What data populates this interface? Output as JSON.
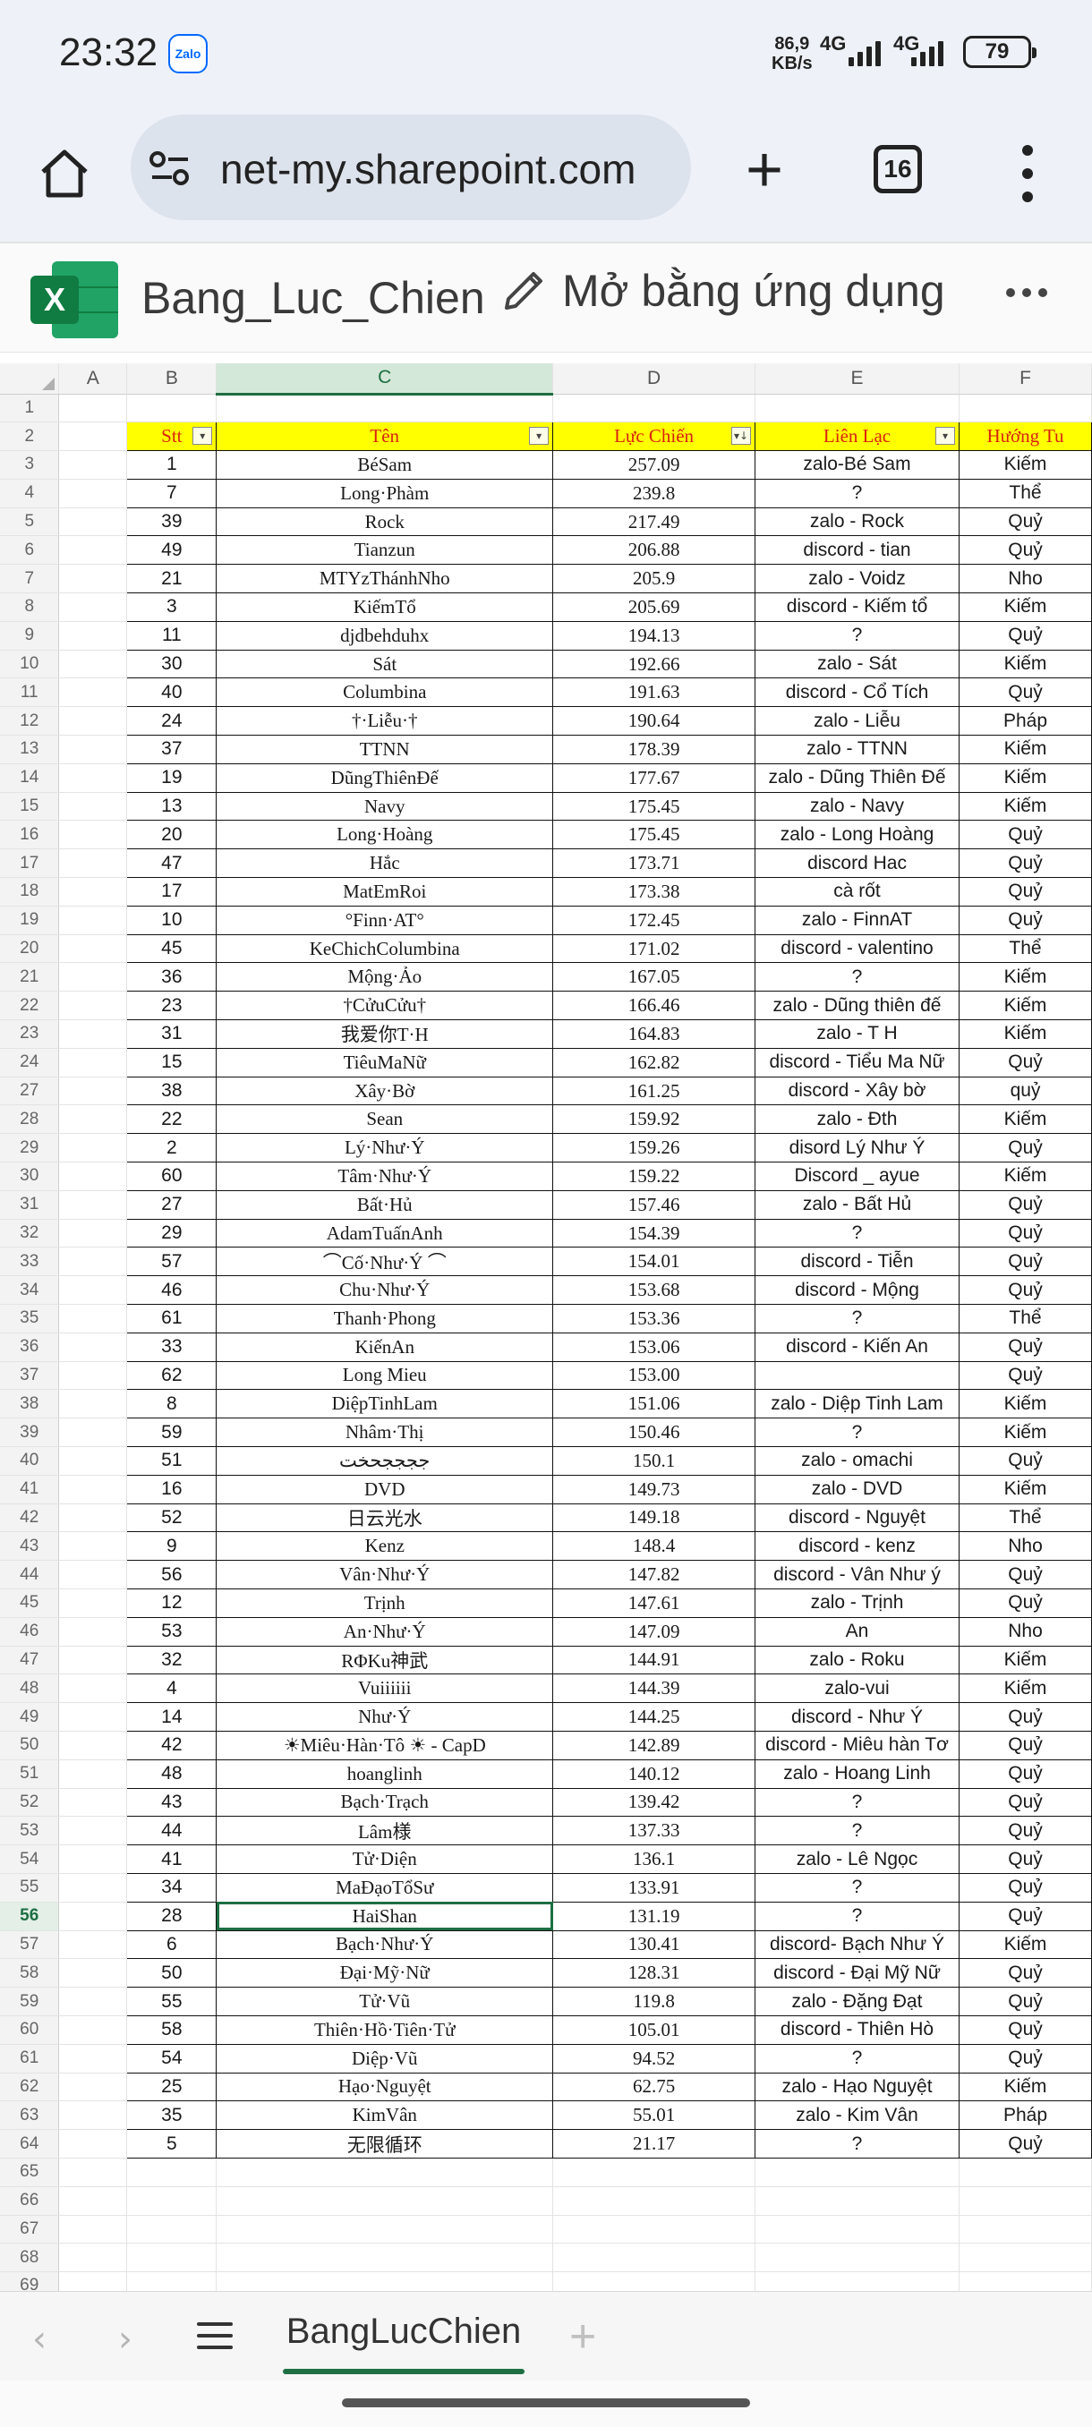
{
  "status_bar": {
    "time": "23:32",
    "app_badge": "Zalo",
    "net_speed": "86,9",
    "net_unit": "KB/s",
    "net_type_1": "4G",
    "net_type_2": "4G",
    "battery": "79"
  },
  "browser": {
    "url": "net-my.sharepoint.com",
    "tab_count": "16"
  },
  "excel": {
    "logo_letter": "X",
    "file_title": "Bang_Luc_Chien",
    "open_in_app": "Mở bằng ứng dụng"
  },
  "grid": {
    "column_letters": [
      "A",
      "B",
      "C",
      "D",
      "E",
      "F"
    ],
    "selected_column": "C",
    "selected_row": "56",
    "header_row": {
      "number": "2",
      "cells": [
        "Stt",
        "Tên",
        "Lực Chiến",
        "Liên Lạc",
        "Hướng Tu"
      ]
    },
    "data_rows": [
      {
        "row": "3",
        "stt": "1",
        "ten": "BéSam",
        "luc_chien": "257.09",
        "lien_lac": "zalo-Bé Sam",
        "huong_tu": "Kiếm"
      },
      {
        "row": "4",
        "stt": "7",
        "ten": "Long·Phàm",
        "luc_chien": "239.8",
        "lien_lac": "?",
        "huong_tu": "Thể"
      },
      {
        "row": "5",
        "stt": "39",
        "ten": "Rock",
        "luc_chien": "217.49",
        "lien_lac": "zalo - Rock",
        "huong_tu": "Quỷ"
      },
      {
        "row": "6",
        "stt": "49",
        "ten": "Tianzun",
        "luc_chien": "206.88",
        "lien_lac": "discord - tian",
        "huong_tu": "Quỷ"
      },
      {
        "row": "7",
        "stt": "21",
        "ten": "MTYzThánhNho",
        "luc_chien": "205.9",
        "lien_lac": "zalo - Voidz",
        "huong_tu": "Nho"
      },
      {
        "row": "8",
        "stt": "3",
        "ten": "KiếmTổ",
        "luc_chien": "205.69",
        "lien_lac": "discord - Kiếm tổ",
        "huong_tu": "Kiếm"
      },
      {
        "row": "9",
        "stt": "11",
        "ten": "djdbehduhx",
        "luc_chien": "194.13",
        "lien_lac": "?",
        "huong_tu": "Quỷ"
      },
      {
        "row": "10",
        "stt": "30",
        "ten": "Sát",
        "luc_chien": "192.66",
        "lien_lac": "zalo - Sát",
        "huong_tu": "Kiếm"
      },
      {
        "row": "11",
        "stt": "40",
        "ten": "Columbina",
        "luc_chien": "191.63",
        "lien_lac": "discord - Cổ Tích",
        "huong_tu": "Quỷ"
      },
      {
        "row": "12",
        "stt": "24",
        "ten": "†·Liễu·†",
        "luc_chien": "190.64",
        "lien_lac": "zalo - Liễu",
        "huong_tu": "Pháp"
      },
      {
        "row": "13",
        "stt": "37",
        "ten": "TTNN",
        "luc_chien": "178.39",
        "lien_lac": "zalo - TTNN",
        "huong_tu": "Kiếm"
      },
      {
        "row": "14",
        "stt": "19",
        "ten": "DũngThiênĐế",
        "luc_chien": "177.67",
        "lien_lac": "zalo - Dũng Thiên Đế",
        "huong_tu": "Kiếm"
      },
      {
        "row": "15",
        "stt": "13",
        "ten": "Navy",
        "luc_chien": "175.45",
        "lien_lac": "zalo - Navy",
        "huong_tu": "Kiếm"
      },
      {
        "row": "16",
        "stt": "20",
        "ten": "Long·Hoàng",
        "luc_chien": "175.45",
        "lien_lac": "zalo - Long Hoàng",
        "huong_tu": "Quỷ"
      },
      {
        "row": "17",
        "stt": "47",
        "ten": "Hắc",
        "luc_chien": "173.71",
        "lien_lac": "discord Hac",
        "huong_tu": "Quỷ"
      },
      {
        "row": "18",
        "stt": "17",
        "ten": "MatEmRoi",
        "luc_chien": "173.38",
        "lien_lac": "cà rốt",
        "huong_tu": "Quỷ"
      },
      {
        "row": "19",
        "stt": "10",
        "ten": "°Finn·AT°",
        "luc_chien": "172.45",
        "lien_lac": "zalo - FinnAT",
        "huong_tu": "Quỷ"
      },
      {
        "row": "20",
        "stt": "45",
        "ten": "KeChichColumbina",
        "luc_chien": "171.02",
        "lien_lac": "discord - valentino",
        "huong_tu": "Thể"
      },
      {
        "row": "21",
        "stt": "36",
        "ten": "Mộng·Ảo",
        "luc_chien": "167.05",
        "lien_lac": "?",
        "huong_tu": "Kiếm"
      },
      {
        "row": "22",
        "stt": "23",
        "ten": "†CửuCửu†",
        "luc_chien": "166.46",
        "lien_lac": "zalo - Dũng thiên đế",
        "huong_tu": "Kiếm"
      },
      {
        "row": "23",
        "stt": "31",
        "ten": "我爱你T·H",
        "luc_chien": "164.83",
        "lien_lac": "zalo - T H",
        "huong_tu": "Kiếm"
      },
      {
        "row": "24",
        "stt": "15",
        "ten": "TiêuMaNữ",
        "luc_chien": "162.82",
        "lien_lac": "discord  - Tiểu Ma Nữ",
        "huong_tu": "Quỷ"
      },
      {
        "row": "27",
        "stt": "38",
        "ten": "Xây·Bờ",
        "luc_chien": "161.25",
        "lien_lac": "discord - Xây bờ",
        "huong_tu": "quỷ"
      },
      {
        "row": "28",
        "stt": "22",
        "ten": "Sean",
        "luc_chien": "159.92",
        "lien_lac": "zalo - Đth",
        "huong_tu": "Kiếm"
      },
      {
        "row": "29",
        "stt": "2",
        "ten": "Lý·Như·Ý",
        "luc_chien": "159.26",
        "lien_lac": "disord  Lý Như Ý",
        "huong_tu": "Quỷ"
      },
      {
        "row": "30",
        "stt": "60",
        "ten": "Tâm·Như·Ý",
        "luc_chien": "159.22",
        "lien_lac": "Discord _ ayue",
        "huong_tu": "Kiếm"
      },
      {
        "row": "31",
        "stt": "27",
        "ten": "Bất·Hủ",
        "luc_chien": "157.46",
        "lien_lac": "zalo - Bất Hủ",
        "huong_tu": "Quỷ"
      },
      {
        "row": "32",
        "stt": "29",
        "ten": "AdamTuấnAnh",
        "luc_chien": "154.39",
        "lien_lac": "?",
        "huong_tu": "Quỷ"
      },
      {
        "row": "33",
        "stt": "57",
        "ten": "⌒Cố·Như·Ý ⌒",
        "luc_chien": "154.01",
        "lien_lac": "discord - Tiễn",
        "huong_tu": "Quỷ"
      },
      {
        "row": "34",
        "stt": "46",
        "ten": "Chu·Như·Ý",
        "luc_chien": "153.68",
        "lien_lac": "discord - Mộng",
        "huong_tu": "Quỷ"
      },
      {
        "row": "35",
        "stt": "61",
        "ten": "Thanh·Phong",
        "luc_chien": "153.36",
        "lien_lac": "?",
        "huong_tu": "Thể"
      },
      {
        "row": "36",
        "stt": "33",
        "ten": "KiếnAn",
        "luc_chien": "153.06",
        "lien_lac": "discord - Kiến An",
        "huong_tu": "Quỷ"
      },
      {
        "row": "37",
        "stt": "62",
        "ten": "Long Mieu",
        "luc_chien": "153.00",
        "lien_lac": "",
        "huong_tu": "Quỷ"
      },
      {
        "row": "38",
        "stt": "8",
        "ten": "DiệpTinhLam",
        "luc_chien": "151.06",
        "lien_lac": "zalo - Diệp Tinh Lam",
        "huong_tu": "Kiếm"
      },
      {
        "row": "39",
        "stt": "59",
        "ten": "Nhâm·Thị",
        "luc_chien": "150.46",
        "lien_lac": "?",
        "huong_tu": "Kiếm"
      },
      {
        "row": "40",
        "stt": "51",
        "ten": "ججججحخت",
        "luc_chien": "150.1",
        "lien_lac": "zalo - omachi",
        "huong_tu": "Quỷ"
      },
      {
        "row": "41",
        "stt": "16",
        "ten": "DVD",
        "luc_chien": "149.73",
        "lien_lac": "zalo - DVD",
        "huong_tu": "Kiếm"
      },
      {
        "row": "42",
        "stt": "52",
        "ten": "日云光水",
        "luc_chien": "149.18",
        "lien_lac": "discord - Nguyệt",
        "huong_tu": "Thể"
      },
      {
        "row": "43",
        "stt": "9",
        "ten": "Kenz",
        "luc_chien": "148.4",
        "lien_lac": "discord - kenz",
        "huong_tu": "Nho"
      },
      {
        "row": "44",
        "stt": "56",
        "ten": "Vân·Như·Ý",
        "luc_chien": "147.82",
        "lien_lac": "discord - Vân Như ý",
        "huong_tu": "Quỷ"
      },
      {
        "row": "45",
        "stt": "12",
        "ten": "Trịnh",
        "luc_chien": "147.61",
        "lien_lac": "zalo - Trịnh",
        "huong_tu": "Quỷ"
      },
      {
        "row": "46",
        "stt": "53",
        "ten": "An·Như·Ý",
        "luc_chien": "147.09",
        "lien_lac": "An",
        "huong_tu": "Nho"
      },
      {
        "row": "47",
        "stt": "32",
        "ten": "RΦKu神武",
        "luc_chien": "144.91",
        "lien_lac": "zalo - Roku",
        "huong_tu": "Kiếm"
      },
      {
        "row": "48",
        "stt": "4",
        "ten": "Vuiiiiii",
        "luc_chien": "144.39",
        "lien_lac": "zalo-vui",
        "huong_tu": "Kiếm"
      },
      {
        "row": "49",
        "stt": "14",
        "ten": "Như·Ý",
        "luc_chien": "144.25",
        "lien_lac": "discord  - Như Ý",
        "huong_tu": "Quỷ"
      },
      {
        "row": "50",
        "stt": "42",
        "ten": "☀Miêu·Hàn·Tô ☀ - CapD",
        "luc_chien": "142.89",
        "lien_lac": "discord - Miêu hàn Tơ",
        "huong_tu": "Quỷ"
      },
      {
        "row": "51",
        "stt": "48",
        "ten": "hoanglinh",
        "luc_chien": "140.12",
        "lien_lac": "zalo - Hoang Linh",
        "huong_tu": "Quỷ"
      },
      {
        "row": "52",
        "stt": "43",
        "ten": "Bạch·Trạch",
        "luc_chien": "139.42",
        "lien_lac": "?",
        "huong_tu": "Quỷ"
      },
      {
        "row": "53",
        "stt": "44",
        "ten": "Lâm様",
        "luc_chien": "137.33",
        "lien_lac": "?",
        "huong_tu": "Quỷ"
      },
      {
        "row": "54",
        "stt": "41",
        "ten": "Tử·Diện",
        "luc_chien": "136.1",
        "lien_lac": "zalo - Lê Ngọc",
        "huong_tu": "Quỷ"
      },
      {
        "row": "55",
        "stt": "34",
        "ten": "MaĐạoTổSư",
        "luc_chien": "133.91",
        "lien_lac": "?",
        "huong_tu": "Quỷ"
      },
      {
        "row": "56",
        "stt": "28",
        "ten": "HaiShan",
        "luc_chien": "131.19",
        "lien_lac": "?",
        "huong_tu": "Quỷ"
      },
      {
        "row": "57",
        "stt": "6",
        "ten": "Bạch·Như·Ý",
        "luc_chien": "130.41",
        "lien_lac": "discord- Bạch Như Ý",
        "huong_tu": "Kiếm"
      },
      {
        "row": "58",
        "stt": "50",
        "ten": "Đại·Mỹ·Nữ",
        "luc_chien": "128.31",
        "lien_lac": "discord - Đại Mỹ Nữ",
        "huong_tu": "Quỷ"
      },
      {
        "row": "59",
        "stt": "55",
        "ten": "Tử·Vũ",
        "luc_chien": "119.8",
        "lien_lac": "zalo - Đặng Đạt",
        "huong_tu": "Quỷ"
      },
      {
        "row": "60",
        "stt": "58",
        "ten": "Thiên·Hồ·Tiên·Tử",
        "luc_chien": "105.01",
        "lien_lac": "discord - Thiên Hò",
        "huong_tu": "Quỷ"
      },
      {
        "row": "61",
        "stt": "54",
        "ten": "Diệp·Vũ",
        "luc_chien": "94.52",
        "lien_lac": "?",
        "huong_tu": "Quỷ"
      },
      {
        "row": "62",
        "stt": "25",
        "ten": "Hạo·Nguyệt",
        "luc_chien": "62.75",
        "lien_lac": "zalo - Hạo Nguyệt",
        "huong_tu": "Kiếm"
      },
      {
        "row": "63",
        "stt": "35",
        "ten": "KimVân",
        "luc_chien": "55.01",
        "lien_lac": "zalo - Kim Vân",
        "huong_tu": "Pháp"
      },
      {
        "row": "64",
        "stt": "5",
        "ten": "无限循环",
        "luc_chien": "21.17",
        "lien_lac": "?",
        "huong_tu": "Quỷ"
      }
    ],
    "empty_rows_top": [
      "1"
    ],
    "empty_rows_bottom": [
      "65",
      "66",
      "67",
      "68",
      "69"
    ]
  },
  "sheet_tabs": {
    "active": "BangLucChien"
  }
}
